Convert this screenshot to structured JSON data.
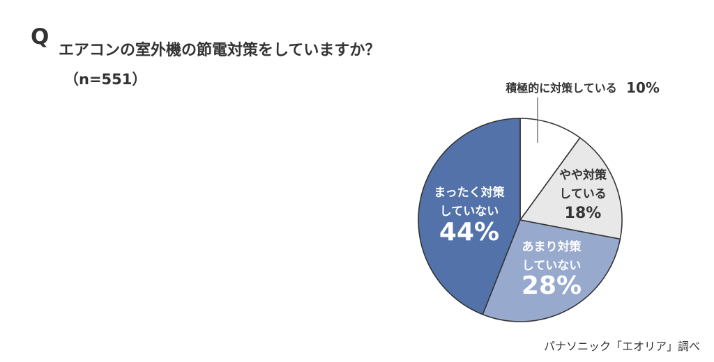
{
  "header": {
    "q_mark": "Q",
    "question": "エアコンの室外機の節電対策をしていますか？",
    "sample_size": "（n=551）"
  },
  "source": "パナソニック「エオリア」調べ",
  "colors": {
    "slice_positive": "#ffffff",
    "slice_somewhat": "#e8e8e8",
    "slice_not_much": "#97a9cd",
    "slice_not_at_all": "#5272a9",
    "outline": "#333333",
    "text_dark": "#333333",
    "text_light": "#ffffff"
  },
  "chart_data": {
    "type": "pie",
    "title": "エアコンの室外機の節電対策をしていますか？",
    "start": "12 o'clock, clockwise",
    "slices": [
      {
        "label_lines": [
          "積極的に対策している"
        ],
        "value": 10,
        "value_label": "10%",
        "color": "#ffffff",
        "text_color": "#333333"
      },
      {
        "label_lines": [
          "やや対策",
          "している"
        ],
        "value": 18,
        "value_label": "18%",
        "color": "#e8e8e8",
        "text_color": "#333333"
      },
      {
        "label_lines": [
          "あまり対策",
          "していない"
        ],
        "value": 28,
        "value_label": "28%",
        "color": "#97a9cd",
        "text_color": "#ffffff"
      },
      {
        "label_lines": [
          "まったく対策",
          "していない"
        ],
        "value": 44,
        "value_label": "44%",
        "color": "#5272a9",
        "text_color": "#ffffff"
      }
    ]
  }
}
